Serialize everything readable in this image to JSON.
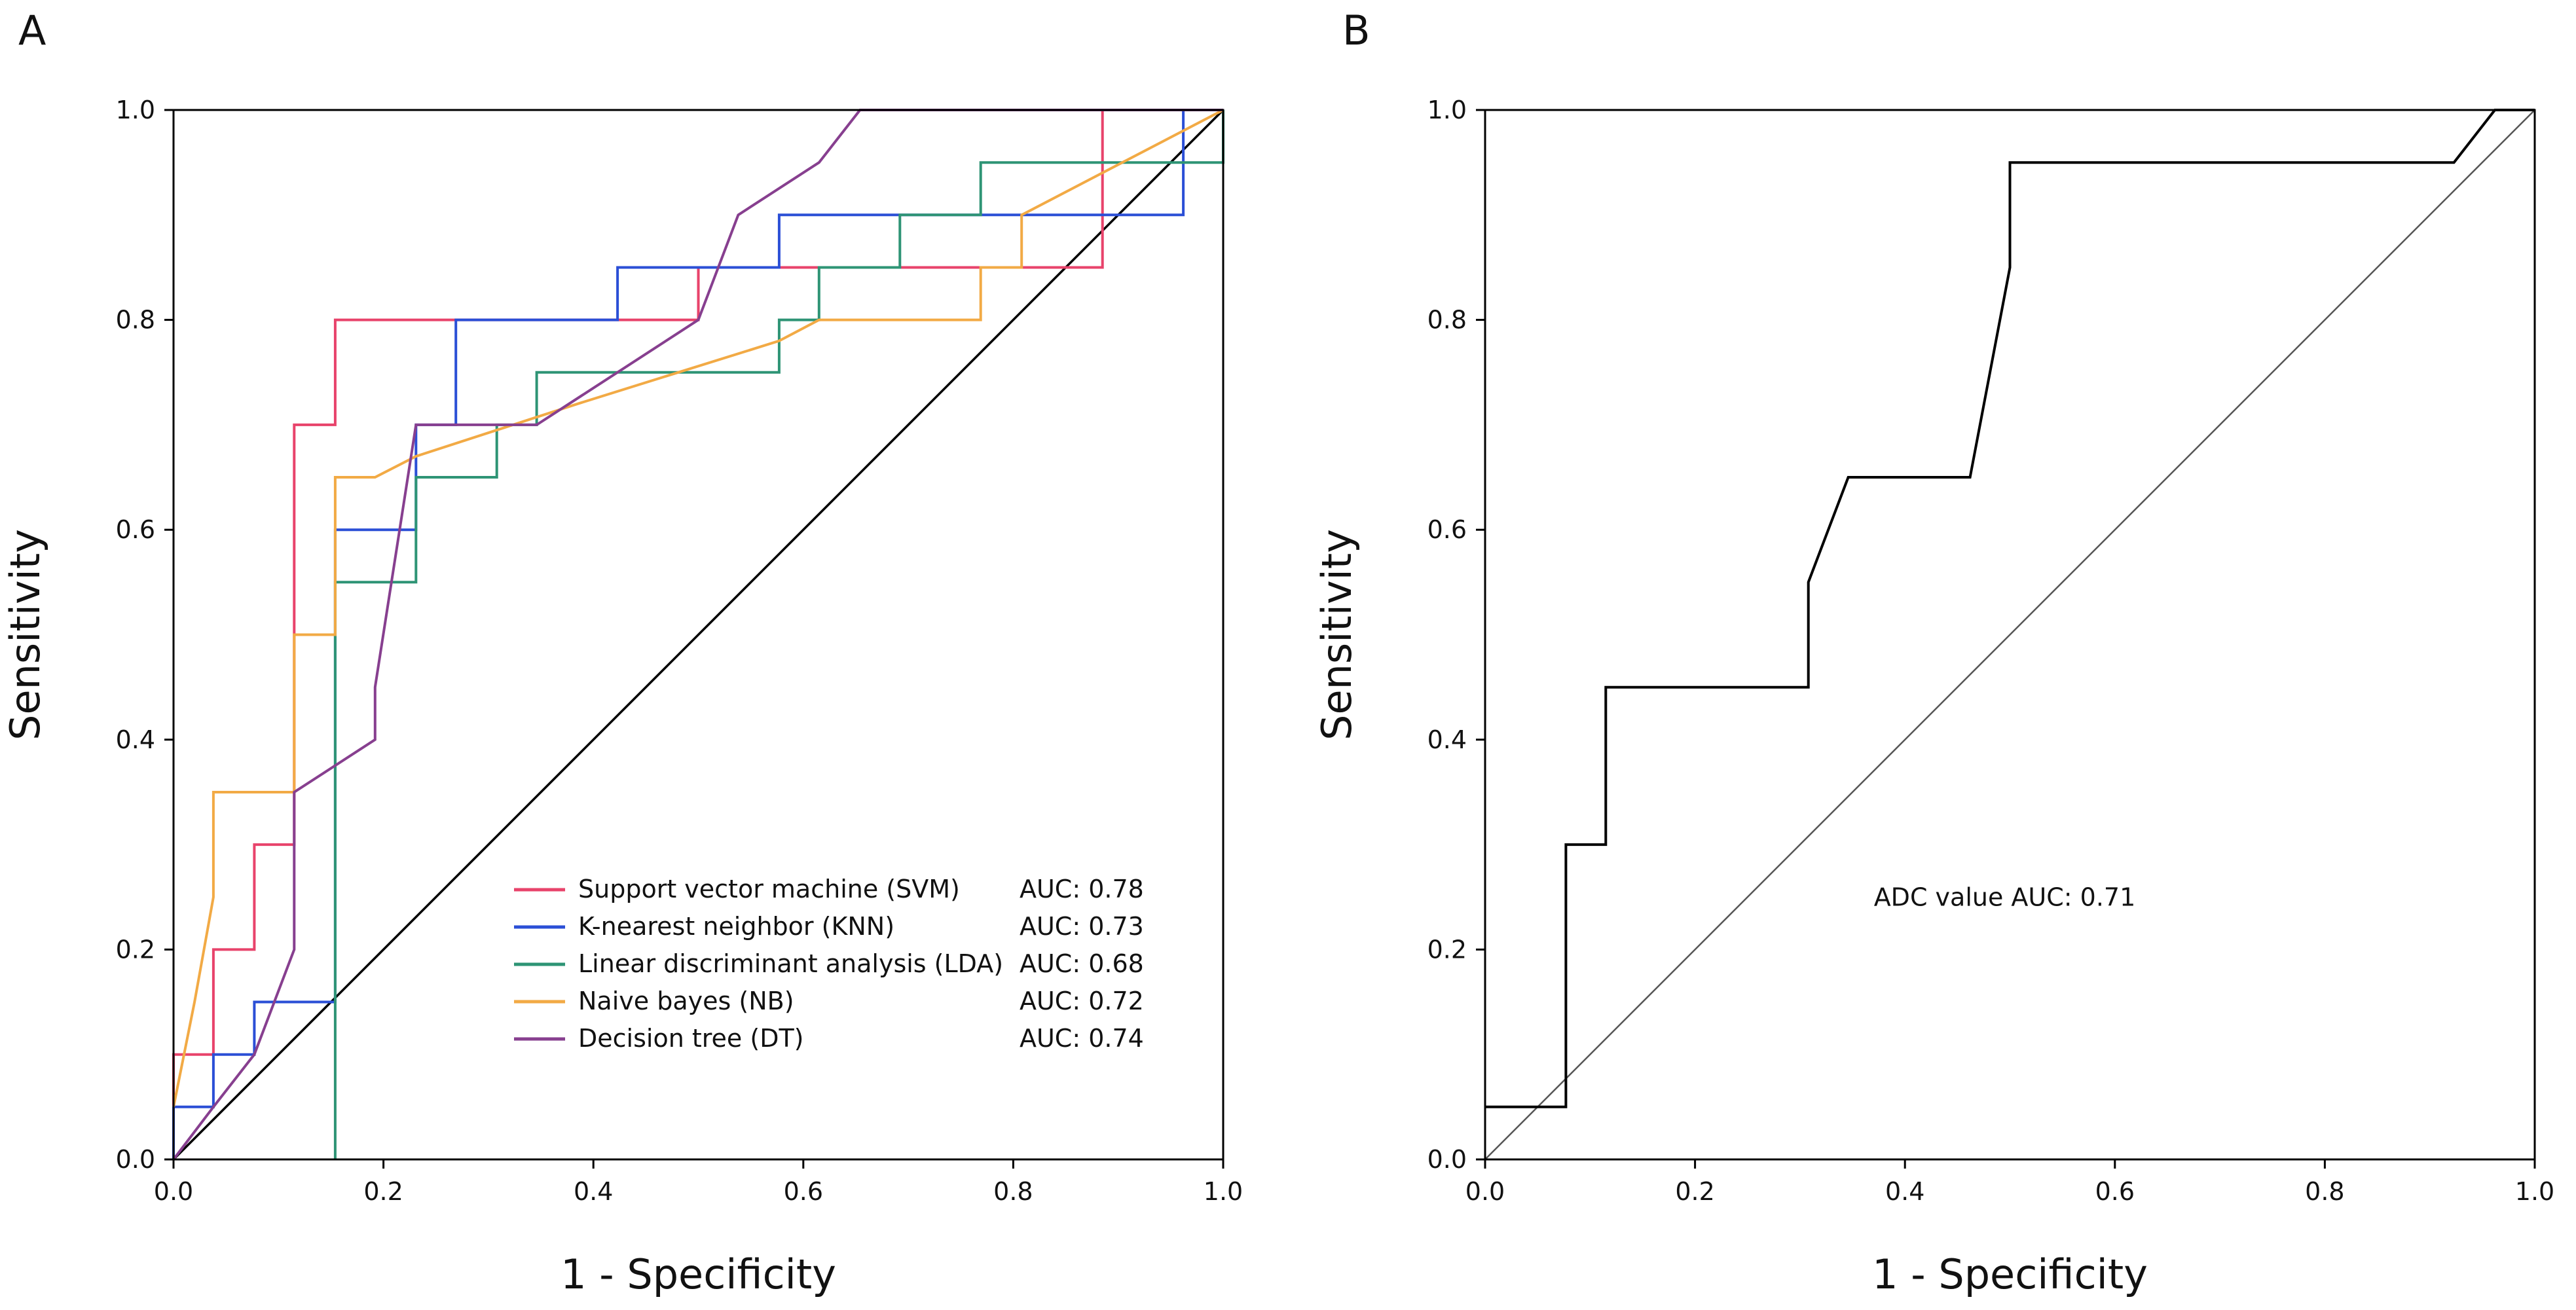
{
  "chart_data": [
    {
      "panel_label": "A",
      "type": "line",
      "title": "",
      "xlabel": "1 - Specificity",
      "ylabel": "Sensitivity",
      "xlim": [
        0,
        1
      ],
      "ylim": [
        0,
        1
      ],
      "xticks": [
        "0.0",
        "0.2",
        "0.4",
        "0.6",
        "0.8",
        "1.0"
      ],
      "yticks": [
        "0.0",
        "0.2",
        "0.4",
        "0.6",
        "0.8",
        "1.0"
      ],
      "grid": false,
      "legend_position": "lower-right",
      "reference_line": {
        "x": [
          0,
          1
        ],
        "y": [
          0,
          1
        ],
        "color": "#000000"
      },
      "series": [
        {
          "name": "Support vector machine (SVM)",
          "auc_label": "AUC: 0.78",
          "color": "#e8436b",
          "x": [
            0,
            0,
            0.038,
            0.038,
            0.077,
            0.077,
            0.115,
            0.115,
            0.154,
            0.154,
            0.5,
            0.5,
            0.885,
            0.885,
            1
          ],
          "y": [
            0,
            0.1,
            0.1,
            0.2,
            0.2,
            0.3,
            0.3,
            0.7,
            0.7,
            0.8,
            0.8,
            0.85,
            0.85,
            1,
            1
          ]
        },
        {
          "name": "K-nearest neighbor (KNN)",
          "auc_label": "AUC: 0.73",
          "color": "#2b4fd6",
          "x": [
            0,
            0,
            0.038,
            0.038,
            0.077,
            0.077,
            0.154,
            0.154,
            0.231,
            0.231,
            0.269,
            0.269,
            0.423,
            0.423,
            0.577,
            0.577,
            0.962,
            0.962,
            1
          ],
          "y": [
            0,
            0.05,
            0.05,
            0.1,
            0.1,
            0.15,
            0.15,
            0.6,
            0.6,
            0.7,
            0.7,
            0.8,
            0.8,
            0.85,
            0.85,
            0.9,
            0.9,
            1,
            1
          ]
        },
        {
          "name": "Linear discriminant analysis (LDA)",
          "auc_label": "AUC: 0.68",
          "color": "#2e9475",
          "x": [
            0.154,
            0.154,
            0.231,
            0.231,
            0.308,
            0.308,
            0.346,
            0.346,
            0.577,
            0.577,
            0.615,
            0.615,
            0.692,
            0.692,
            0.769,
            0.769,
            1,
            1
          ],
          "y": [
            0,
            0.55,
            0.55,
            0.65,
            0.65,
            0.7,
            0.7,
            0.75,
            0.75,
            0.8,
            0.8,
            0.85,
            0.85,
            0.9,
            0.9,
            0.95,
            0.95,
            1
          ]
        },
        {
          "name": "Naive bayes (NB)",
          "auc_label": "AUC: 0.72",
          "color": "#f2aa45",
          "x": [
            0,
            0.02,
            0.038,
            0.038,
            0.115,
            0.115,
            0.154,
            0.154,
            0.192,
            0.231,
            0.385,
            0.577,
            0.615,
            0.769,
            0.769,
            0.808,
            0.808,
            1
          ],
          "y": [
            0.05,
            0.15,
            0.25,
            0.35,
            0.35,
            0.5,
            0.5,
            0.65,
            0.65,
            0.67,
            0.72,
            0.78,
            0.8,
            0.8,
            0.85,
            0.85,
            0.9,
            1
          ]
        },
        {
          "name": "Decision tree (DT)",
          "auc_label": "AUC: 0.74",
          "color": "#873f8f",
          "x": [
            0,
            0.038,
            0.077,
            0.115,
            0.115,
            0.192,
            0.192,
            0.231,
            0.346,
            0.5,
            0.538,
            0.615,
            0.654,
            0.654,
            1
          ],
          "y": [
            0,
            0.05,
            0.1,
            0.2,
            0.35,
            0.4,
            0.45,
            0.7,
            0.7,
            0.8,
            0.9,
            0.95,
            1,
            1,
            1
          ]
        }
      ]
    },
    {
      "panel_label": "B",
      "type": "line",
      "title": "",
      "xlabel": "1 - Specificity",
      "ylabel": "Sensitivity",
      "xlim": [
        0,
        1
      ],
      "ylim": [
        0,
        1
      ],
      "xticks": [
        "0.0",
        "0.2",
        "0.4",
        "0.6",
        "0.8",
        "1.0"
      ],
      "yticks": [
        "0.0",
        "0.2",
        "0.4",
        "0.6",
        "0.8",
        "1.0"
      ],
      "grid": false,
      "reference_line": {
        "x": [
          0,
          1
        ],
        "y": [
          0,
          1
        ],
        "color": "#555555"
      },
      "annotation": "ADC value   AUC: 0.71",
      "series": [
        {
          "name": "ADC value",
          "auc_label": "AUC: 0.71",
          "color": "#000000",
          "x": [
            0,
            0.077,
            0.077,
            0.115,
            0.115,
            0.308,
            0.308,
            0.346,
            0.462,
            0.5,
            0.5,
            0.923,
            0.962,
            1
          ],
          "y": [
            0.05,
            0.05,
            0.3,
            0.3,
            0.45,
            0.45,
            0.55,
            0.65,
            0.65,
            0.85,
            0.95,
            0.95,
            1,
            1
          ]
        }
      ]
    }
  ]
}
